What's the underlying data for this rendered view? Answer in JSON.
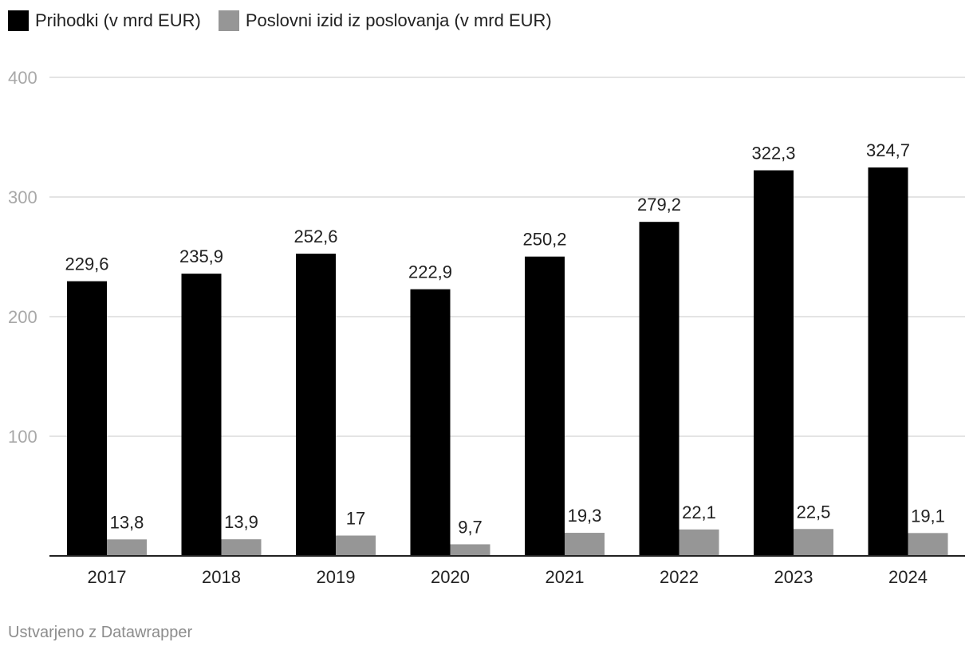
{
  "chart_data": {
    "type": "bar",
    "categories": [
      "2017",
      "2018",
      "2019",
      "2020",
      "2021",
      "2022",
      "2023",
      "2024"
    ],
    "series": [
      {
        "name": "Prihodki (v mrd EUR)",
        "values": [
          229.6,
          235.9,
          252.6,
          222.9,
          250.2,
          279.2,
          322.3,
          324.7
        ],
        "labels": [
          "229,6",
          "235,9",
          "252,6",
          "222,9",
          "250,2",
          "279,2",
          "322,3",
          "324,7"
        ],
        "color": "#000000"
      },
      {
        "name": "Poslovni izid iz poslovanja (v mrd EUR)",
        "values": [
          13.8,
          13.9,
          17,
          9.7,
          19.3,
          22.1,
          22.5,
          19.1
        ],
        "labels": [
          "13,8",
          "13,9",
          "17",
          "9,7",
          "19,3",
          "22,1",
          "22,5",
          "19,1"
        ],
        "color": "#969696"
      }
    ],
    "yticks": [
      "100",
      "200",
      "300",
      "400"
    ],
    "ylim": [
      0,
      400
    ],
    "grid": true,
    "legend": "top-left"
  },
  "footer": {
    "credit": "Ustvarjeno z Datawrapper"
  }
}
